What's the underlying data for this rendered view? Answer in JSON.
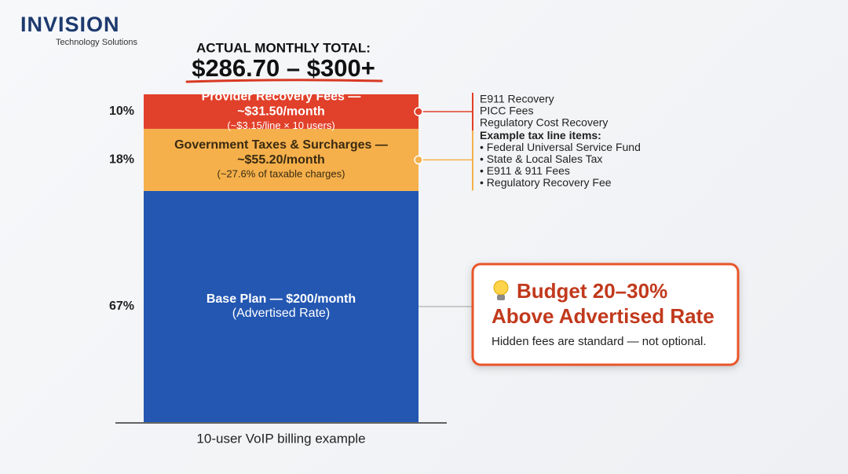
{
  "brand": {
    "name": "INVISION",
    "tagline": "Technology Solutions"
  },
  "chart_data": {
    "type": "stacked-bar",
    "title": "ACTUAL MONTHLY TOTAL:",
    "subtitle": "$286.70 – $300+",
    "x_label": "10-user VoIP billing example",
    "series": [
      {
        "label_lines": [
          "Base Plan — $200/month"
        ],
        "note": "(Advertised Rate)",
        "color": "#2357b2",
        "text_color": "#ffffff",
        "values": [
          67
        ],
        "value_labels": [
          "67%"
        ]
      },
      {
        "label_lines": [
          "Government Taxes & Surcharges —",
          "~$55.20/month"
        ],
        "note": "(~27.6% of taxable charges)",
        "color": "#f5b04b",
        "text_color": "#3a2a12",
        "values": [
          18
        ],
        "value_labels": [
          "18%"
        ],
        "details": {
          "heading": "Example tax line items:",
          "items": [
            "• Federal Universal Service Fund",
            "• State & Local Sales Tax",
            "• E911 & 911 Fees",
            "• Regulatory Recovery Fee"
          ]
        }
      },
      {
        "label_lines": [
          "Provider Recovery Fees —",
          "~$31.50/month"
        ],
        "note": "(~$3.15/line × 10 users)",
        "color": "#e1402a",
        "text_color": "#ffffff",
        "values": [
          10
        ],
        "value_labels": [
          "10%"
        ],
        "details": {
          "items": [
            "E911 Recovery",
            "PICC Fees",
            "Regulatory Cost Recovery"
          ]
        }
      }
    ]
  },
  "callout": {
    "title_lines": [
      "Budget 20–30%",
      "Above Advertised Rate"
    ],
    "text": "Hidden fees are standard — not optional."
  }
}
